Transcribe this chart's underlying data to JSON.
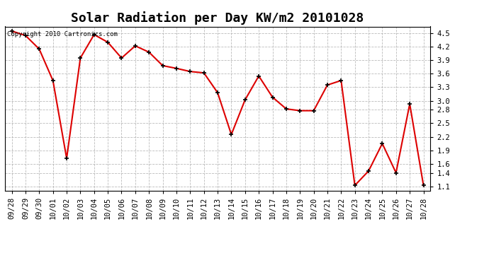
{
  "title": "Solar Radiation per Day KW/m2 20101028",
  "copyright_text": "Copyright 2010 Cartronics.com",
  "x_labels": [
    "09/28",
    "09/29",
    "09/30",
    "10/01",
    "10/02",
    "10/03",
    "10/04",
    "10/05",
    "10/06",
    "10/07",
    "10/08",
    "10/09",
    "10/10",
    "10/11",
    "10/12",
    "10/13",
    "10/14",
    "10/15",
    "10/16",
    "10/17",
    "10/18",
    "10/19",
    "10/20",
    "10/21",
    "10/22",
    "10/23",
    "10/24",
    "10/25",
    "10/26",
    "10/27",
    "10/28"
  ],
  "y_values": [
    4.55,
    4.45,
    4.15,
    3.45,
    1.72,
    3.95,
    4.47,
    4.3,
    3.95,
    4.22,
    4.08,
    3.78,
    3.72,
    3.65,
    3.62,
    3.18,
    2.25,
    3.02,
    3.55,
    3.08,
    2.82,
    2.78,
    2.78,
    3.35,
    3.45,
    1.12,
    1.44,
    2.05,
    1.4,
    2.93,
    1.12
  ],
  "line_color": "#dd0000",
  "marker_color": "#000000",
  "background_color": "#ffffff",
  "plot_bg_color": "#ffffff",
  "grid_color": "#aaaaaa",
  "ylim": [
    1.0,
    4.65
  ],
  "yticks": [
    1.1,
    1.4,
    1.6,
    1.9,
    2.2,
    2.5,
    2.8,
    3.0,
    3.3,
    3.6,
    3.9,
    4.2,
    4.5
  ],
  "title_fontsize": 13,
  "tick_fontsize": 7.5,
  "copyright_fontsize": 6.5
}
